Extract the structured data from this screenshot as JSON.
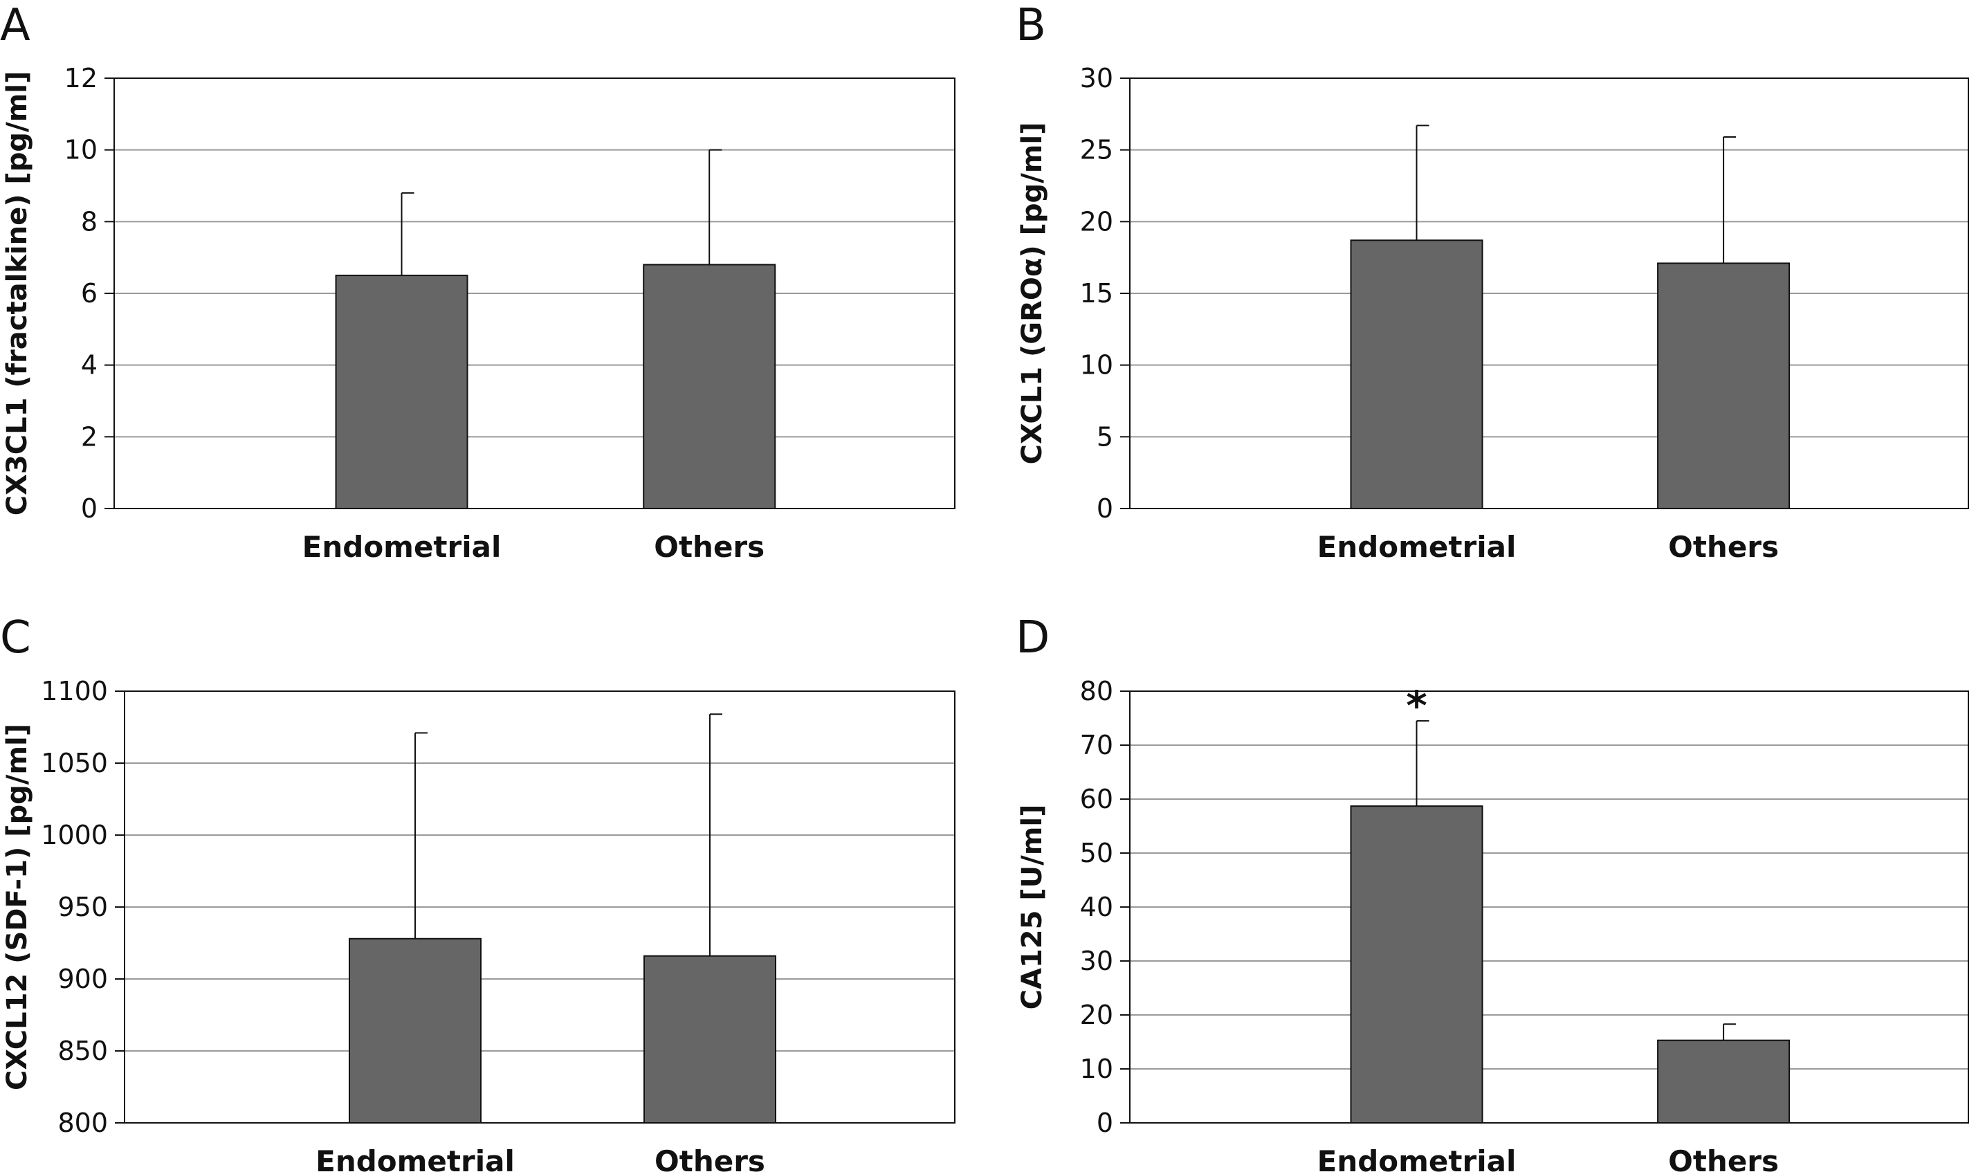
{
  "chart_data": [
    {
      "panel": "A",
      "type": "bar",
      "categories": [
        "Endometrial",
        "Others"
      ],
      "values": [
        6.5,
        6.8
      ],
      "error_upper": [
        8.8,
        10.0
      ],
      "ylabel": "CX3CL1 (fractalkine) [pg/ml]",
      "ylim": [
        0,
        12
      ],
      "yticks": [
        0,
        2,
        4,
        6,
        8,
        10,
        12
      ],
      "grid": true,
      "bar_color": "#666666"
    },
    {
      "panel": "B",
      "type": "bar",
      "categories": [
        "Endometrial",
        "Others"
      ],
      "values": [
        18.7,
        17.1
      ],
      "error_upper": [
        26.7,
        25.9
      ],
      "ylabel": "CXCL1 (GROα) [pg/ml]",
      "ylim": [
        0,
        30
      ],
      "yticks": [
        0,
        5,
        10,
        15,
        20,
        25,
        30
      ],
      "grid": true,
      "bar_color": "#666666"
    },
    {
      "panel": "C",
      "type": "bar",
      "categories": [
        "Endometrial",
        "Others"
      ],
      "values": [
        928,
        916
      ],
      "error_upper": [
        1071,
        1084
      ],
      "ylabel": "CXCL12 (SDF-1) [pg/ml]",
      "ylim": [
        800,
        1100
      ],
      "yticks": [
        800,
        850,
        900,
        950,
        1000,
        1050,
        1100
      ],
      "grid": true,
      "bar_color": "#666666"
    },
    {
      "panel": "D",
      "type": "bar",
      "categories": [
        "Endometrial",
        "Others"
      ],
      "values": [
        58.7,
        15.3
      ],
      "error_upper": [
        74.5,
        18.3
      ],
      "annotations": [
        "*",
        ""
      ],
      "ylabel": "CA125 [U/ml]",
      "ylim": [
        0,
        80
      ],
      "yticks": [
        0,
        10,
        20,
        30,
        40,
        50,
        60,
        70,
        80
      ],
      "grid": true,
      "bar_color": "#666666"
    }
  ]
}
